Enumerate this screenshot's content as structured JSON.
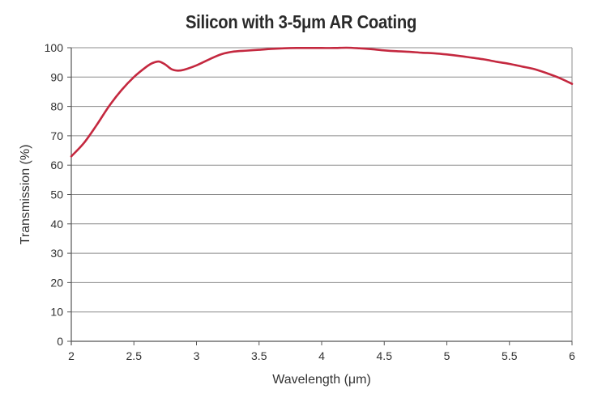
{
  "chart_data": {
    "type": "line",
    "title": "Silicon with 3-5μm AR Coating",
    "xlabel": "Wavelength (μm)",
    "ylabel": "Transmission (%)",
    "xlim": [
      2,
      6
    ],
    "ylim": [
      0,
      100
    ],
    "xticks": [
      "2",
      "2.5",
      "3",
      "3.5",
      "4",
      "4.5",
      "5",
      "5.5",
      "6"
    ],
    "yticks": [
      "0",
      "10",
      "20",
      "30",
      "40",
      "50",
      "60",
      "70",
      "80",
      "90",
      "100"
    ],
    "grid": "horizontal",
    "colors": {
      "line": "#c4283f",
      "grid": "#8c8c8c",
      "axis": "#555555"
    },
    "series": [
      {
        "x": [
          2.0,
          2.1,
          2.2,
          2.3,
          2.4,
          2.5,
          2.6,
          2.65,
          2.7,
          2.75,
          2.8,
          2.85,
          2.9,
          3.0,
          3.1,
          3.2,
          3.3,
          3.4,
          3.5,
          3.6,
          3.7,
          3.8,
          3.9,
          4.0,
          4.1,
          4.2,
          4.3,
          4.4,
          4.5,
          4.6,
          4.7,
          4.8,
          4.9,
          5.0,
          5.1,
          5.2,
          5.3,
          5.4,
          5.5,
          5.6,
          5.7,
          5.8,
          5.9,
          6.0
        ],
        "y": [
          63,
          67.5,
          73.5,
          80,
          85.5,
          90,
          93.5,
          94.8,
          95.3,
          94.3,
          92.7,
          92.2,
          92.5,
          94,
          96,
          97.8,
          98.7,
          99,
          99.3,
          99.6,
          99.8,
          99.9,
          99.9,
          99.9,
          99.9,
          100,
          99.8,
          99.5,
          99.1,
          98.8,
          98.6,
          98.3,
          98.1,
          97.7,
          97.2,
          96.6,
          96,
          95.2,
          94.5,
          93.6,
          92.7,
          91.3,
          89.7,
          87.7
        ]
      }
    ]
  }
}
